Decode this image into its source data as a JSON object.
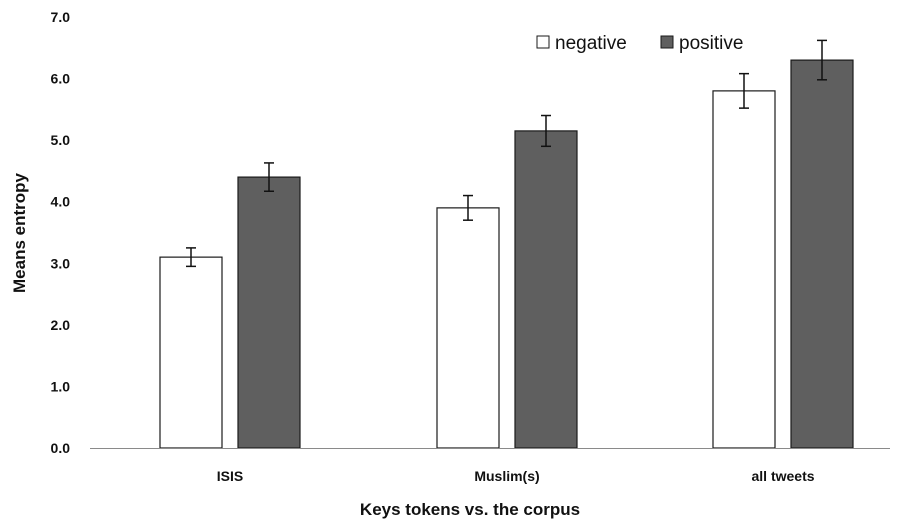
{
  "chart_data": {
    "type": "bar",
    "title": "",
    "xlabel": "Keys tokens vs. the corpus",
    "ylabel": "Means entropy",
    "categories": [
      "ISIS",
      "Muslim(s)",
      "all tweets"
    ],
    "series": [
      {
        "name": "negative",
        "values": [
          3.1,
          3.9,
          5.8
        ],
        "errors": [
          0.15,
          0.2,
          0.28
        ],
        "color": "#ffffff"
      },
      {
        "name": "positive",
        "values": [
          4.4,
          5.15,
          6.3
        ],
        "errors": [
          0.23,
          0.25,
          0.32
        ],
        "color": "#5f5f5f"
      }
    ],
    "ylim": [
      0,
      7
    ],
    "yticks": [
      "0.0",
      "1.0",
      "2.0",
      "3.0",
      "4.0",
      "5.0",
      "6.0",
      "7.0"
    ],
    "ytick_values": [
      0,
      1,
      2,
      3,
      4,
      5,
      6,
      7
    ],
    "grid": false,
    "legend_position": "top-right"
  }
}
